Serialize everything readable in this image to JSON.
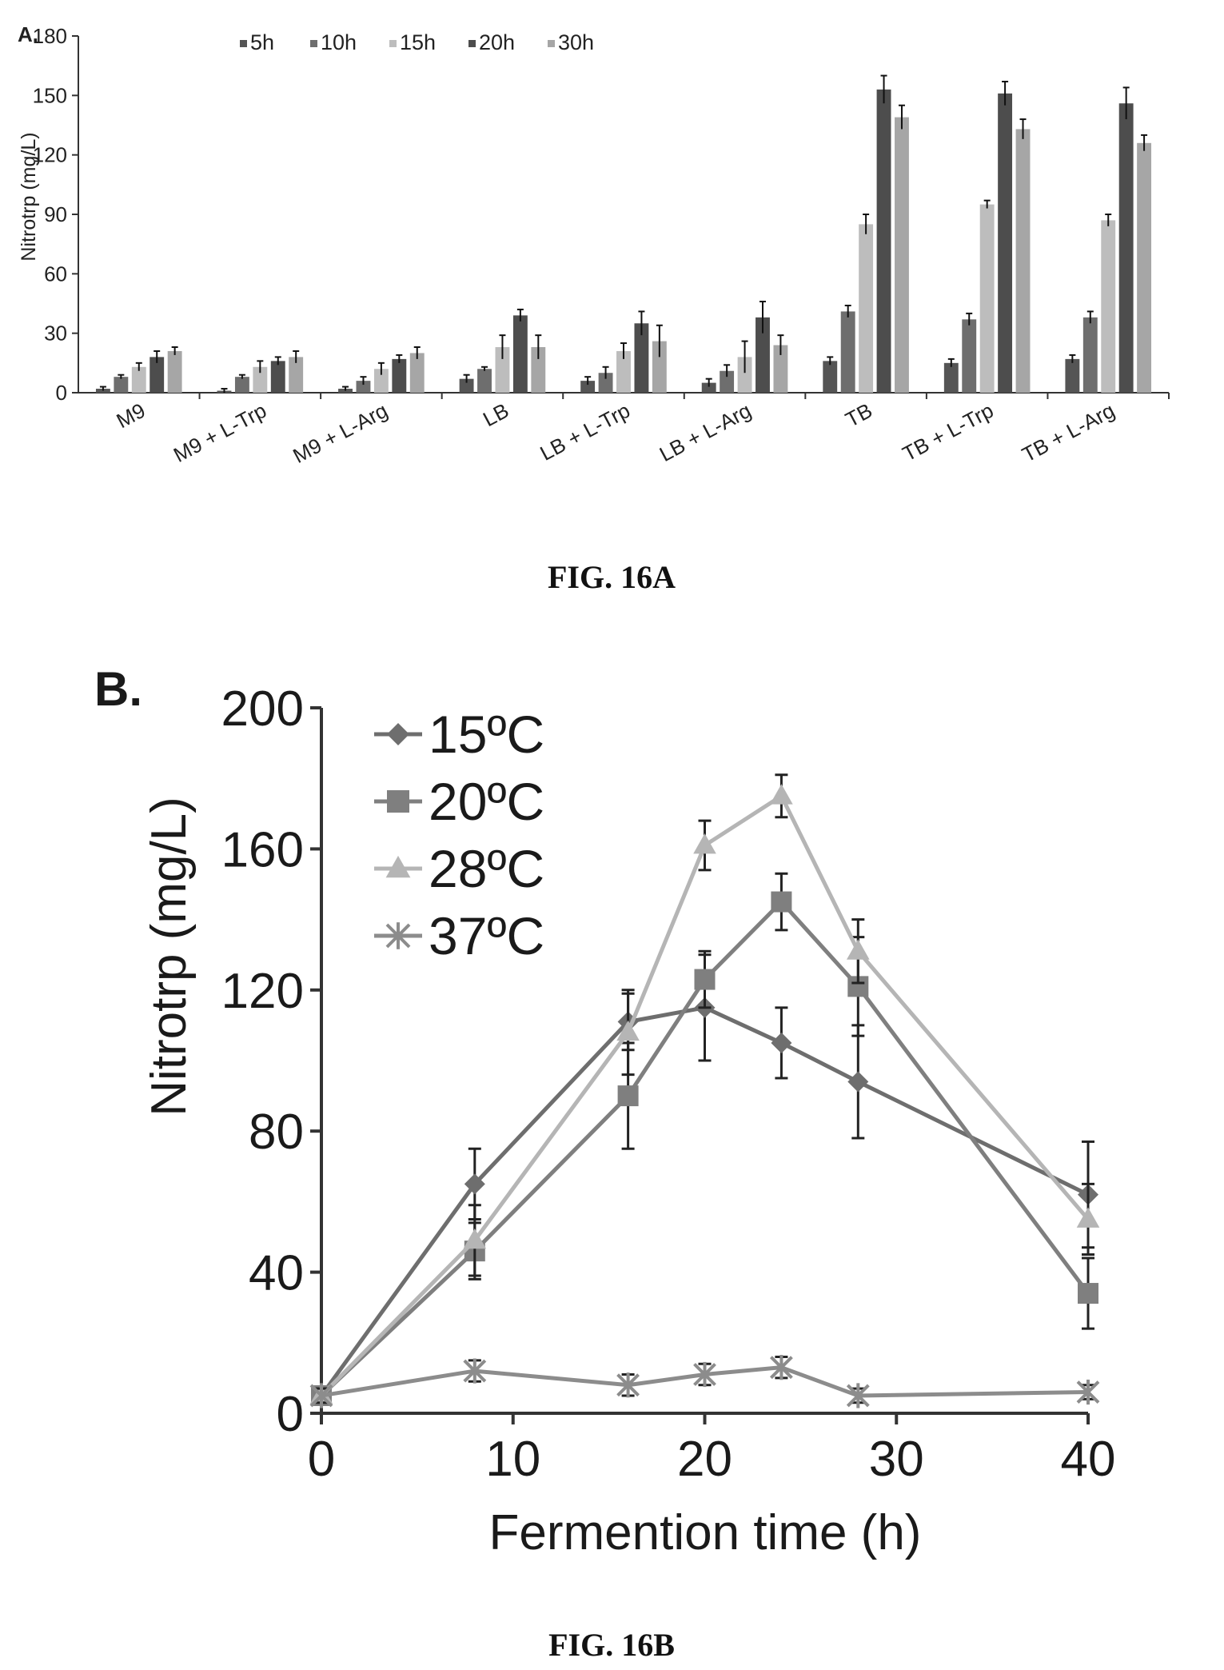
{
  "panel_a": {
    "panel_label": "A.",
    "caption": "FIG. 16A"
  },
  "panel_b": {
    "panel_label": "B.",
    "caption": "FIG. 16B"
  },
  "colors": {
    "5h": "#555555",
    "10h": "#6e6e6e",
    "15h": "#bdbdbd",
    "20h": "#4d4d4d",
    "30h": "#a6a6a6",
    "15C": "#6e6e6e",
    "20C": "#7f7f7f",
    "28C": "#b5b5b5",
    "37C": "#8c8c8c"
  },
  "chart_data": [
    {
      "type": "bar",
      "title": "",
      "xlabel": "",
      "ylabel": "Nitrotrp (mg/L)",
      "ylim": [
        0,
        180
      ],
      "yticks": [
        0,
        30,
        60,
        90,
        120,
        150,
        180
      ],
      "legend_position": "top",
      "categories": [
        "M9",
        "M9 + L-Trp",
        "M9 + L-Arg",
        "LB",
        "LB + L-Trp",
        "LB + L-Arg",
        "TB",
        "TB + L-Trp",
        "TB + L-Arg"
      ],
      "series": [
        {
          "name": "5h",
          "values": [
            2,
            1,
            2,
            7,
            6,
            5,
            16,
            15,
            17
          ],
          "errors": [
            1,
            1,
            1,
            2,
            2,
            2,
            2,
            2,
            2
          ]
        },
        {
          "name": "10h",
          "values": [
            8,
            8,
            6,
            12,
            10,
            11,
            41,
            37,
            38
          ],
          "errors": [
            1,
            1,
            2,
            1,
            3,
            3,
            3,
            3,
            3
          ]
        },
        {
          "name": "15h",
          "values": [
            13,
            13,
            12,
            23,
            21,
            18,
            85,
            95,
            87
          ],
          "errors": [
            2,
            3,
            3,
            6,
            4,
            8,
            5,
            2,
            3
          ]
        },
        {
          "name": "20h",
          "values": [
            18,
            16,
            17,
            39,
            35,
            38,
            153,
            151,
            146
          ],
          "errors": [
            3,
            2,
            2,
            3,
            6,
            8,
            7,
            6,
            8
          ]
        },
        {
          "name": "30h",
          "values": [
            21,
            18,
            20,
            23,
            26,
            24,
            139,
            133,
            126
          ],
          "errors": [
            2,
            3,
            3,
            6,
            8,
            5,
            6,
            5,
            4
          ]
        }
      ]
    },
    {
      "type": "line",
      "title": "",
      "xlabel": "Fermention time (h)",
      "ylabel": "Nitrotrp (mg/L)",
      "xlim": [
        0,
        40
      ],
      "ylim": [
        0,
        200
      ],
      "xticks": [
        0,
        10,
        20,
        30,
        40
      ],
      "yticks": [
        0,
        40,
        80,
        120,
        160,
        200
      ],
      "legend_position": "top-left",
      "x": [
        0,
        8,
        16,
        20,
        24,
        28,
        40
      ],
      "series": [
        {
          "name": "15ºC",
          "marker": "diamond",
          "values": [
            5,
            65,
            111,
            115,
            105,
            94,
            62
          ],
          "errors": [
            2,
            10,
            8,
            15,
            10,
            16,
            15
          ]
        },
        {
          "name": "20ºC",
          "marker": "square",
          "values": [
            5,
            46,
            90,
            123,
            145,
            121,
            34
          ],
          "errors": [
            2,
            8,
            15,
            8,
            8,
            14,
            10
          ]
        },
        {
          "name": "28ºC",
          "marker": "triangle",
          "values": [
            5,
            49,
            108,
            161,
            175,
            131,
            55
          ],
          "errors": [
            2,
            10,
            12,
            7,
            6,
            9,
            10
          ]
        },
        {
          "name": "37ºC",
          "marker": "star",
          "values": [
            5,
            12,
            8,
            11,
            13,
            5,
            6
          ],
          "errors": [
            2,
            3,
            3,
            3,
            3,
            2,
            2
          ]
        }
      ]
    }
  ]
}
